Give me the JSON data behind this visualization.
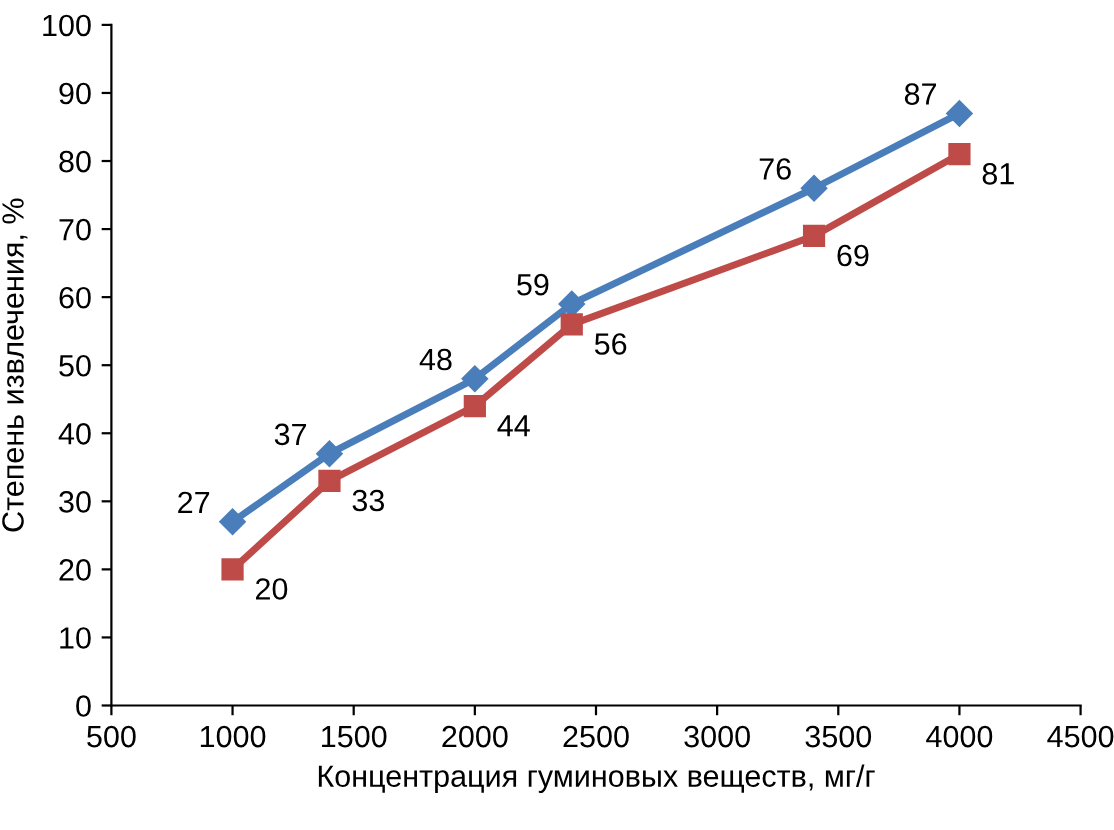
{
  "chart_data": {
    "type": "line",
    "xlabel": "Концентрация гуминовых веществ, мг/г",
    "ylabel": "Степень извлечения, %",
    "x": [
      1000,
      1400,
      2000,
      2400,
      3400,
      4000
    ],
    "series": [
      {
        "color": "#4a7ebb",
        "marker": "diamond",
        "values": [
          27,
          37,
          48,
          59,
          76,
          87
        ]
      },
      {
        "color": "#be4b48",
        "marker": "square",
        "values": [
          20,
          33,
          44,
          56,
          69,
          81
        ]
      }
    ],
    "xlim": [
      500,
      4500
    ],
    "xticks": [
      500,
      1000,
      1500,
      2000,
      2500,
      3000,
      3500,
      4000,
      4500
    ],
    "ylim": [
      0,
      100
    ],
    "yticks": [
      0,
      10,
      20,
      30,
      40,
      50,
      60,
      70,
      80,
      90,
      100
    ],
    "grid": false,
    "data_labels": true,
    "line_style": "solid"
  }
}
